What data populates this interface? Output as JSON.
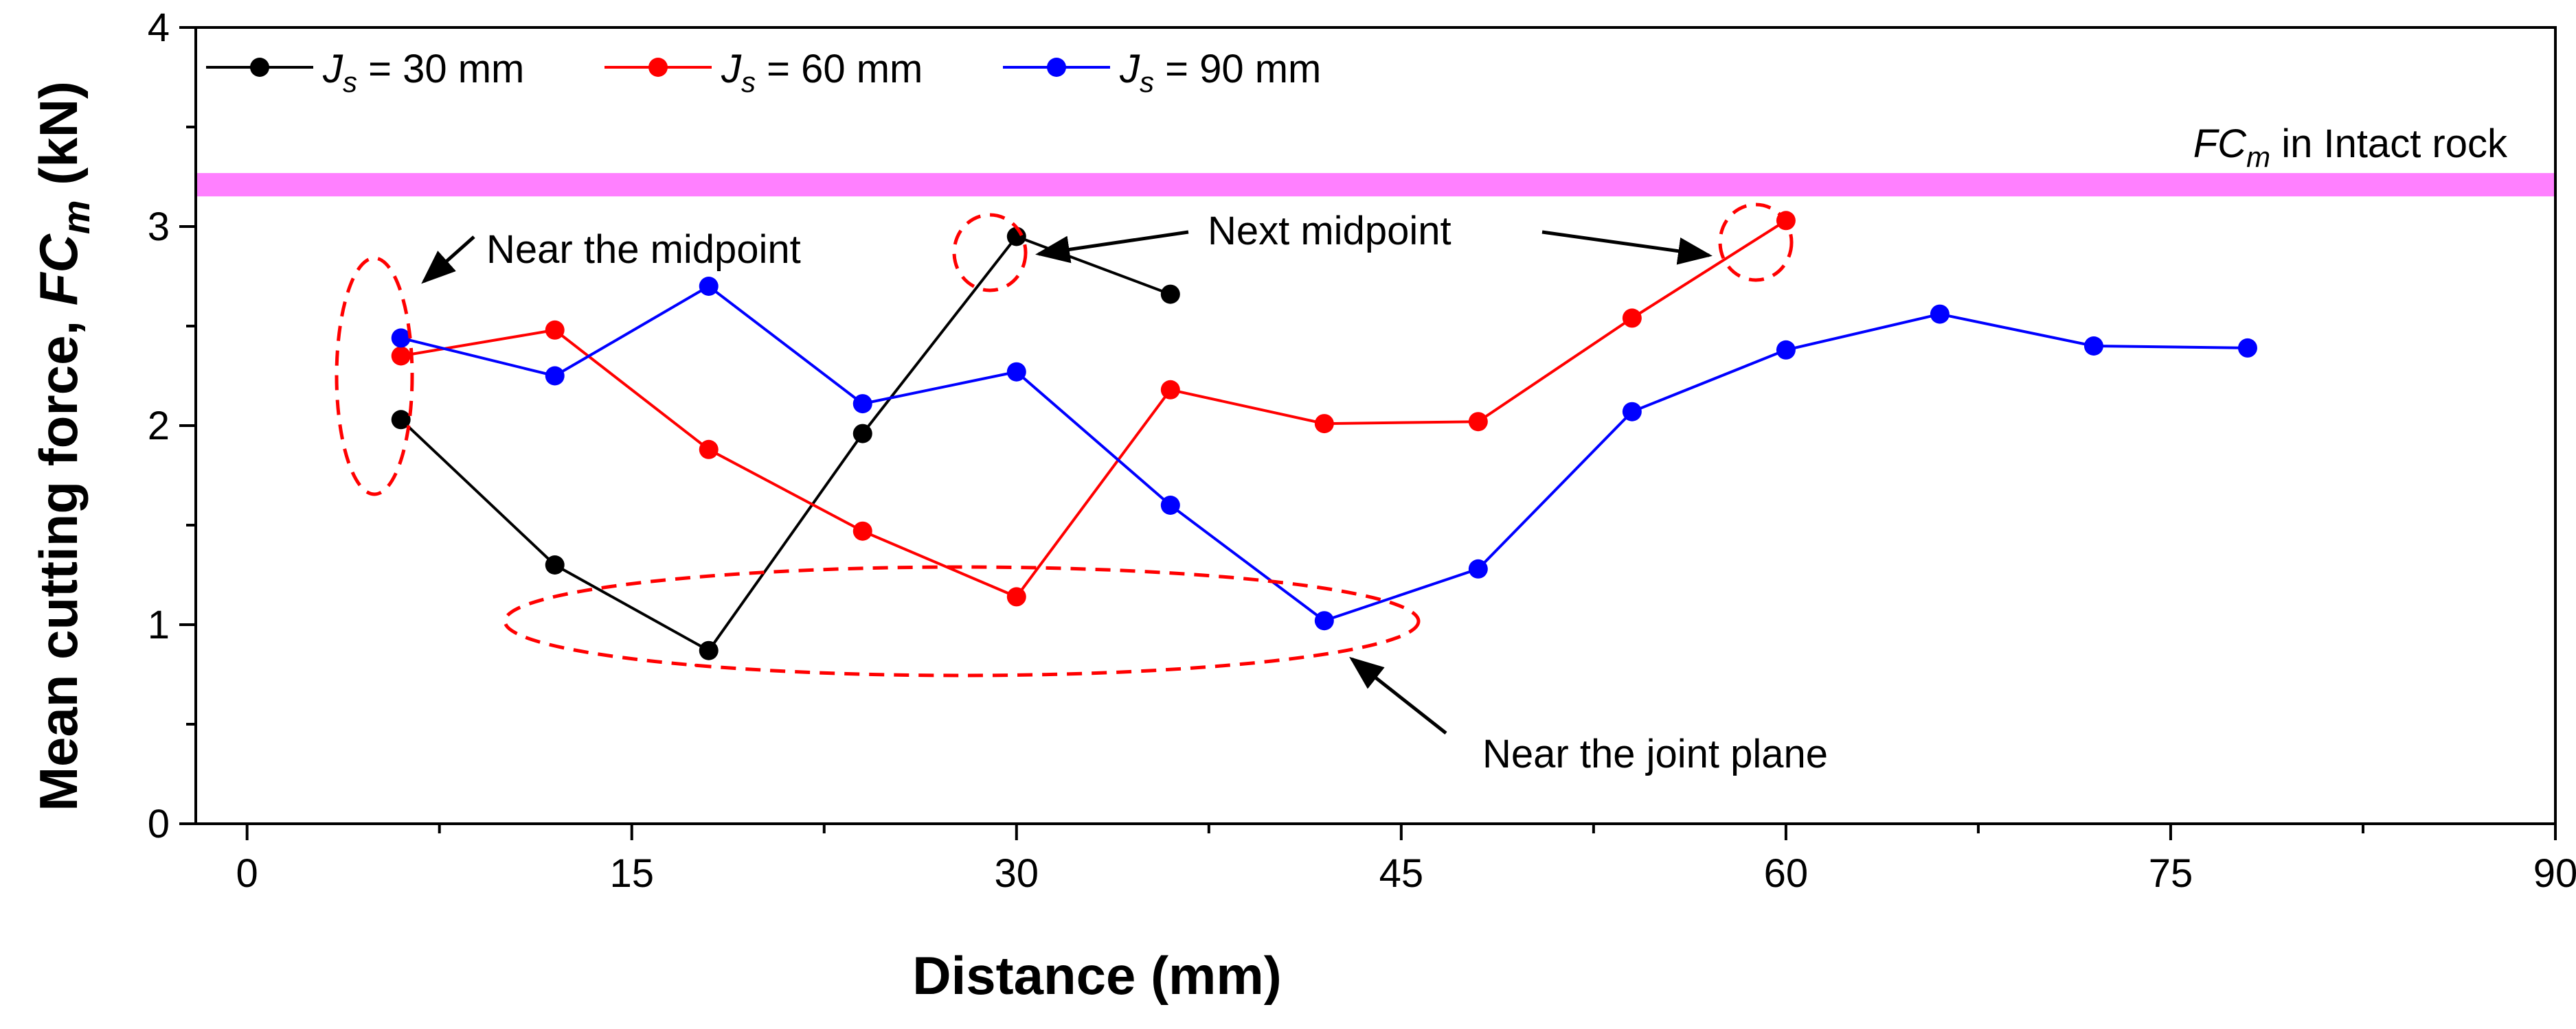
{
  "chart_data": {
    "type": "line",
    "xlabel": "Distance (mm)",
    "ylabel_prefix": "Mean cutting force, ",
    "ylabel_symbol": "FC",
    "ylabel_subscript": "m",
    "ylabel_suffix": "  (kN)",
    "xlim": [
      -2,
      90
    ],
    "ylim": [
      0,
      4
    ],
    "xticks": [
      0,
      15,
      30,
      45,
      60,
      75,
      90
    ],
    "yticks": [
      0,
      1,
      2,
      3,
      4
    ],
    "grid": false,
    "legend_position": "top-left",
    "series": [
      {
        "var": "J",
        "sub": "s",
        "rest": " = 30 mm",
        "color": "#000000",
        "x": [
          6,
          12,
          18,
          24,
          30,
          36
        ],
        "y": [
          2.03,
          1.3,
          0.87,
          1.96,
          2.95,
          2.66
        ]
      },
      {
        "var": "J",
        "sub": "s",
        "rest": " = 60 mm",
        "color": "#ff0000",
        "x": [
          6,
          12,
          18,
          24,
          30,
          36,
          42,
          48,
          54,
          60
        ],
        "y": [
          2.35,
          2.48,
          1.88,
          1.47,
          1.14,
          2.18,
          2.01,
          2.02,
          2.54,
          3.03
        ]
      },
      {
        "var": "J",
        "sub": "s",
        "rest": " = 90 mm",
        "color": "#0000ff",
        "x": [
          6,
          12,
          18,
          24,
          30,
          36,
          42,
          48,
          54,
          60,
          66,
          72,
          78
        ],
        "y": [
          2.44,
          2.25,
          2.7,
          2.11,
          2.27,
          1.6,
          1.02,
          1.28,
          2.07,
          2.38,
          2.56,
          2.4,
          2.39
        ]
      }
    ],
    "reference_band": {
      "value": 3.21,
      "color": "#ff80ff",
      "label_symbol": "FC",
      "label_subscript": "m",
      "label_rest": " in Intact rock"
    },
    "annotations": [
      {
        "text": "Near the midpoint",
        "color": "#000000"
      },
      {
        "text": "Next midpoint",
        "color": "#000000"
      },
      {
        "text": "Near the joint plane",
        "color": "#000000"
      }
    ],
    "highlight_color": "#ff0000"
  }
}
